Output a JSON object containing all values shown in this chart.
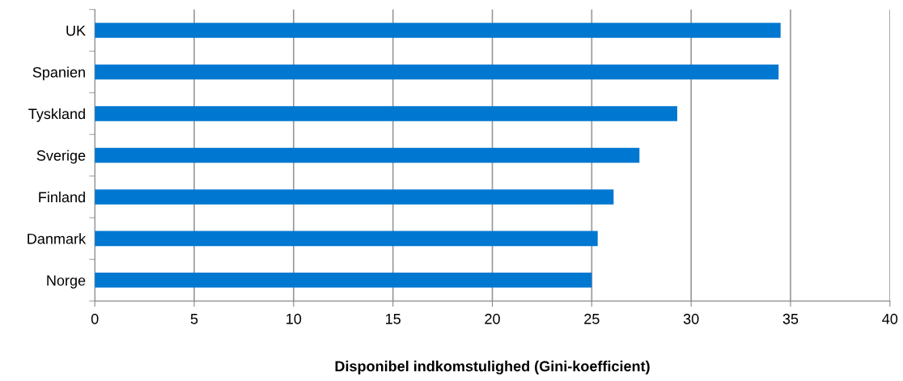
{
  "chart_data": {
    "type": "bar",
    "orientation": "horizontal",
    "xlabel": "Disponibel indkomstulighed (Gini-koefficient)",
    "categories": [
      "UK",
      "Spanien",
      "Tyskland",
      "Sverige",
      "Finland",
      "Danmark",
      "Norge"
    ],
    "values": [
      34.5,
      34.4,
      29.3,
      27.4,
      26.1,
      25.3,
      25.0
    ],
    "color": "#0077d0",
    "xlim": [
      0,
      40
    ],
    "xticks": [
      0,
      5,
      10,
      15,
      20,
      25,
      30,
      35,
      40
    ],
    "grid": "x"
  }
}
